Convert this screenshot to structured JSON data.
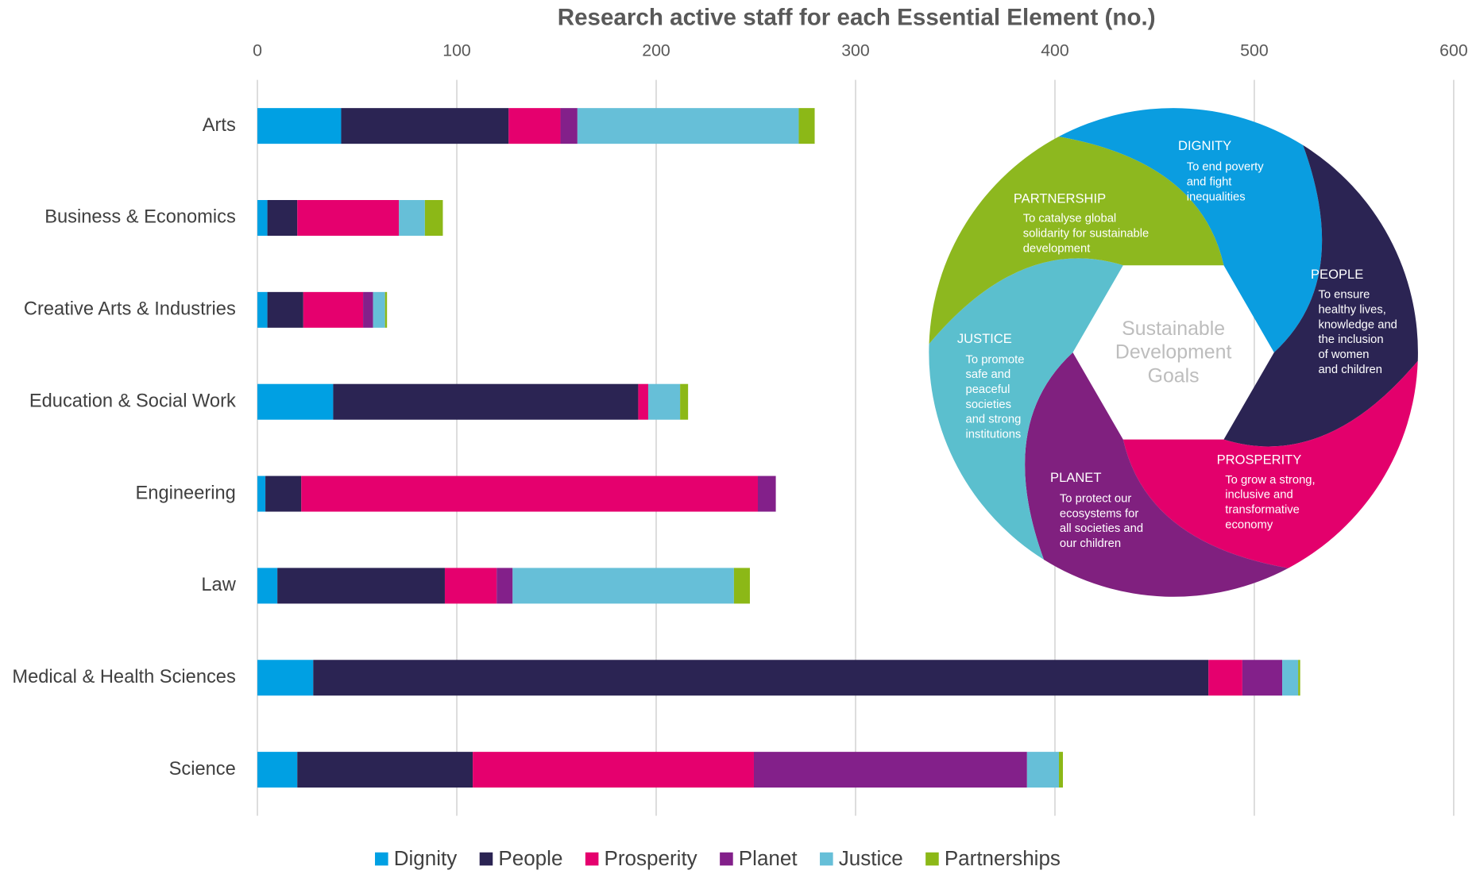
{
  "chart_data": {
    "type": "bar",
    "orientation": "horizontal",
    "stacked": true,
    "title": "Research active staff for each Essential Element (no.)",
    "categories": [
      "Arts",
      "Business & Economics",
      "Creative Arts & Industries",
      "Education & Social Work",
      "Engineering",
      "Law",
      "Medical & Health Sciences",
      "Science"
    ],
    "series": [
      {
        "name": "Dignity",
        "color": "#00a0e3",
        "values": [
          42,
          5,
          5,
          38,
          4,
          10,
          28,
          20
        ]
      },
      {
        "name": "People",
        "color": "#2b2453",
        "values": [
          84,
          15,
          18,
          153,
          18,
          84,
          449,
          88
        ]
      },
      {
        "name": "Prosperity",
        "color": "#e5006e",
        "values": [
          26,
          51,
          30,
          5,
          229,
          26,
          17,
          141
        ]
      },
      {
        "name": "Planet",
        "color": "#83208a",
        "values": [
          8.5,
          0,
          5,
          0,
          9,
          8,
          20,
          137
        ]
      },
      {
        "name": "Justice",
        "color": "#66bfd8",
        "values": [
          111,
          13,
          6,
          16,
          0,
          111,
          8,
          16
        ]
      },
      {
        "name": "Partnerships",
        "color": "#8cb817",
        "values": [
          8,
          9,
          1,
          4,
          0,
          8,
          1,
          2
        ]
      }
    ],
    "xlim": [
      0,
      600
    ],
    "xticks": [
      0,
      100,
      200,
      300,
      400,
      500,
      600
    ],
    "grid": true,
    "legend": "bottom"
  },
  "sdg_wheel": {
    "center": [
      "Sustainable",
      "Development",
      "Goals"
    ],
    "segments": [
      {
        "title": "DIGNITY",
        "color": "#0a9de0",
        "text": [
          "To end poverty",
          "and fight",
          "inequalities"
        ]
      },
      {
        "title": "PEOPLE",
        "color": "#2b2453",
        "text": [
          "To ensure",
          "healthy lives,",
          "knowledge and",
          "the inclusion",
          "of women",
          "and children"
        ]
      },
      {
        "title": "PROSPERITY",
        "color": "#e3006c",
        "text": [
          "To grow a strong,",
          "inclusive and",
          "transformative",
          "economy"
        ]
      },
      {
        "title": "PLANET",
        "color": "#80207f",
        "text": [
          "To protect our",
          "ecosystems for",
          "all societies and",
          "our children"
        ]
      },
      {
        "title": "JUSTICE",
        "color": "#5bbfce",
        "text": [
          "To promote",
          "safe and",
          "peaceful",
          "societies",
          "and strong",
          "institutions"
        ]
      },
      {
        "title": "PARTNERSHIP",
        "color": "#8db81f",
        "text": [
          "To catalyse global",
          "solidarity for sustainable",
          "development"
        ]
      }
    ]
  }
}
